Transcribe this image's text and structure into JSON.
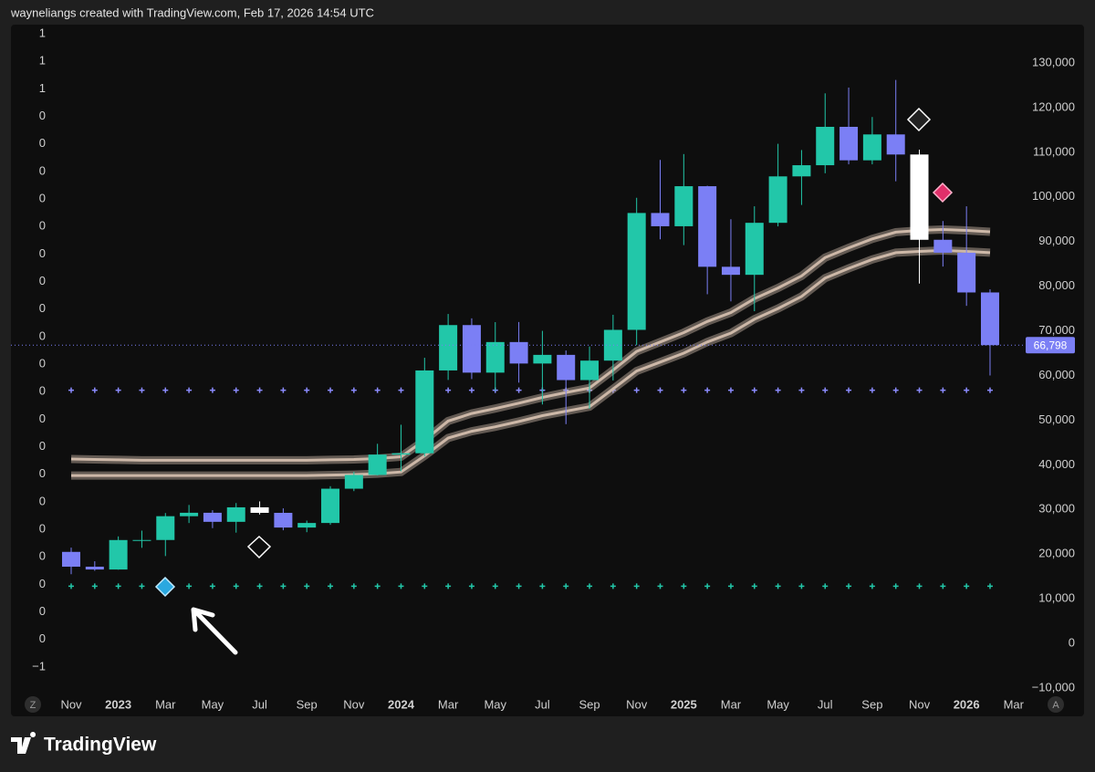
{
  "header": "wayneliangs created with TradingView.com, Feb 17, 2026 14:54 UTC",
  "chart_data": {
    "type": "candlestick",
    "categories": [
      "Nov",
      null,
      "2023",
      null,
      "Mar",
      null,
      "May",
      null,
      "Jul",
      null,
      "Sep",
      null,
      "Nov",
      null,
      "2024",
      null,
      "Mar",
      null,
      "May",
      null,
      "Jul",
      null,
      "Sep",
      null,
      "Nov",
      null,
      "2025",
      null,
      "Mar",
      null,
      "May",
      null,
      "Jul",
      null,
      "Sep",
      null,
      "Nov",
      null,
      "2026",
      null,
      "Mar"
    ],
    "open": [
      20490,
      17170,
      16540,
      23140,
      23150,
      28480,
      29250,
      27220,
      30470,
      29230,
      25940,
      26960,
      34640,
      37720,
      42280,
      42580,
      61130,
      71290,
      60640,
      67490,
      62680,
      64620,
      58970,
      63330,
      70220,
      96400,
      93430,
      102400,
      84350,
      82550,
      94200,
      104600,
      107100,
      115700,
      108200,
      114000,
      109500,
      90400,
      87500,
      78600,
      null
    ],
    "high": [
      21450,
      18390,
      23960,
      25250,
      29190,
      31000,
      29820,
      31430,
      31800,
      30240,
      27490,
      35200,
      38420,
      44700,
      48970,
      63970,
      73780,
      72800,
      71950,
      71980,
      70000,
      65600,
      66500,
      73600,
      99800,
      108300,
      109600,
      102500,
      95000,
      97900,
      111900,
      110500,
      123200,
      124500,
      117900,
      126200,
      110600,
      94600,
      97900,
      79300,
      null
    ],
    "low": [
      15480,
      16260,
      16500,
      21400,
      19550,
      26950,
      25810,
      24800,
      28860,
      25330,
      24900,
      26550,
      34100,
      37600,
      38550,
      41880,
      59000,
      59200,
      56550,
      58400,
      53500,
      49100,
      52550,
      58900,
      66800,
      90500,
      89200,
      78200,
      76600,
      74400,
      93400,
      98200,
      105300,
      107300,
      107300,
      103500,
      80600,
      84400,
      75600,
      60000,
      null
    ],
    "close": [
      17170,
      16540,
      23140,
      23150,
      28480,
      29250,
      27220,
      30470,
      29230,
      25940,
      26960,
      34640,
      37720,
      42280,
      42580,
      61130,
      71290,
      60640,
      67490,
      62680,
      64620,
      58970,
      63330,
      70220,
      96400,
      93430,
      102400,
      84350,
      82550,
      94200,
      104600,
      107100,
      115700,
      108200,
      114000,
      109500,
      90400,
      87500,
      78600,
      66798,
      null
    ],
    "colors": [
      "#7b7ff5",
      "#7b7ff5",
      "#22c7a9",
      "#22c7a9",
      "#22c7a9",
      "#22c7a9",
      "#7b7ff5",
      "#22c7a9",
      "#ffffff",
      "#7b7ff5",
      "#22c7a9",
      "#22c7a9",
      "#22c7a9",
      "#22c7a9",
      "#22c7a9",
      "#22c7a9",
      "#22c7a9",
      "#7b7ff5",
      "#22c7a9",
      "#7b7ff5",
      "#22c7a9",
      "#7b7ff5",
      "#22c7a9",
      "#22c7a9",
      "#22c7a9",
      "#7b7ff5",
      "#22c7a9",
      "#7b7ff5",
      "#7b7ff5",
      "#22c7a9",
      "#22c7a9",
      "#22c7a9",
      "#22c7a9",
      "#7b7ff5",
      "#22c7a9",
      "#7b7ff5",
      "#ffffff",
      "#7b7ff5",
      "#7b7ff5",
      "#7b7ff5",
      null
    ],
    "series": [
      {
        "color": "#cdb8a8",
        "values": [
          41300,
          41200,
          41100,
          41000,
          41000,
          41000,
          41000,
          41000,
          41000,
          41000,
          41000,
          41100,
          41200,
          41400,
          41800,
          45500,
          49800,
          51500,
          52600,
          53800,
          55100,
          56200,
          57200,
          61200,
          65400,
          67500,
          69600,
          72100,
          74100,
          77200,
          79600,
          82300,
          86400,
          88600,
          90600,
          92100,
          92500,
          92700,
          92500,
          92200,
          null
        ]
      },
      {
        "color": "#cdb8a8",
        "values": [
          37600,
          37600,
          37600,
          37600,
          37600,
          37600,
          37600,
          37600,
          37600,
          37600,
          37600,
          37700,
          37800,
          38000,
          38400,
          42000,
          46000,
          47500,
          48500,
          49700,
          51000,
          52000,
          53000,
          57000,
          61000,
          63000,
          65000,
          67500,
          69500,
          72600,
          75000,
          77700,
          81800,
          84000,
          86000,
          87500,
          87800,
          88000,
          87800,
          87500,
          null
        ]
      }
    ],
    "levels": [
      {
        "value": 56700,
        "color": "#8c8cff"
      },
      {
        "value": 12800,
        "color": "#22c7a9"
      }
    ],
    "ylim": [
      -11240,
      139000
    ],
    "yticks": [
      {
        "value": -10000,
        "label": "−10,000"
      },
      0,
      {
        "value": 10000,
        "label": "10,000"
      },
      {
        "value": 20000,
        "label": "20,000"
      },
      {
        "value": 30000,
        "label": "30,000"
      },
      {
        "value": 40000,
        "label": "40,000"
      },
      {
        "value": 50000,
        "label": "50,000"
      },
      {
        "value": 60000,
        "label": "60,000"
      },
      {
        "value": 70000,
        "label": "70,000"
      },
      {
        "value": 80000,
        "label": "80,000"
      },
      {
        "value": 90000,
        "label": "90,000"
      },
      {
        "value": 100000,
        "label": "100,000"
      },
      {
        "value": 110000,
        "label": "110,000"
      },
      {
        "value": 120000,
        "label": "120,000"
      },
      {
        "value": 130000,
        "label": "130,000"
      }
    ],
    "left_labels": [
      "1",
      "1",
      "1",
      "0",
      "0",
      "0",
      "0",
      "0",
      "0",
      "0",
      "0",
      "0",
      "0",
      "0",
      "0",
      "0",
      "0",
      "0",
      "0",
      "0",
      "0",
      "0",
      "0",
      "−1"
    ],
    "last_price_label": "66,798",
    "buttons": [
      "Z",
      "A"
    ]
  },
  "footer": "TradingView"
}
